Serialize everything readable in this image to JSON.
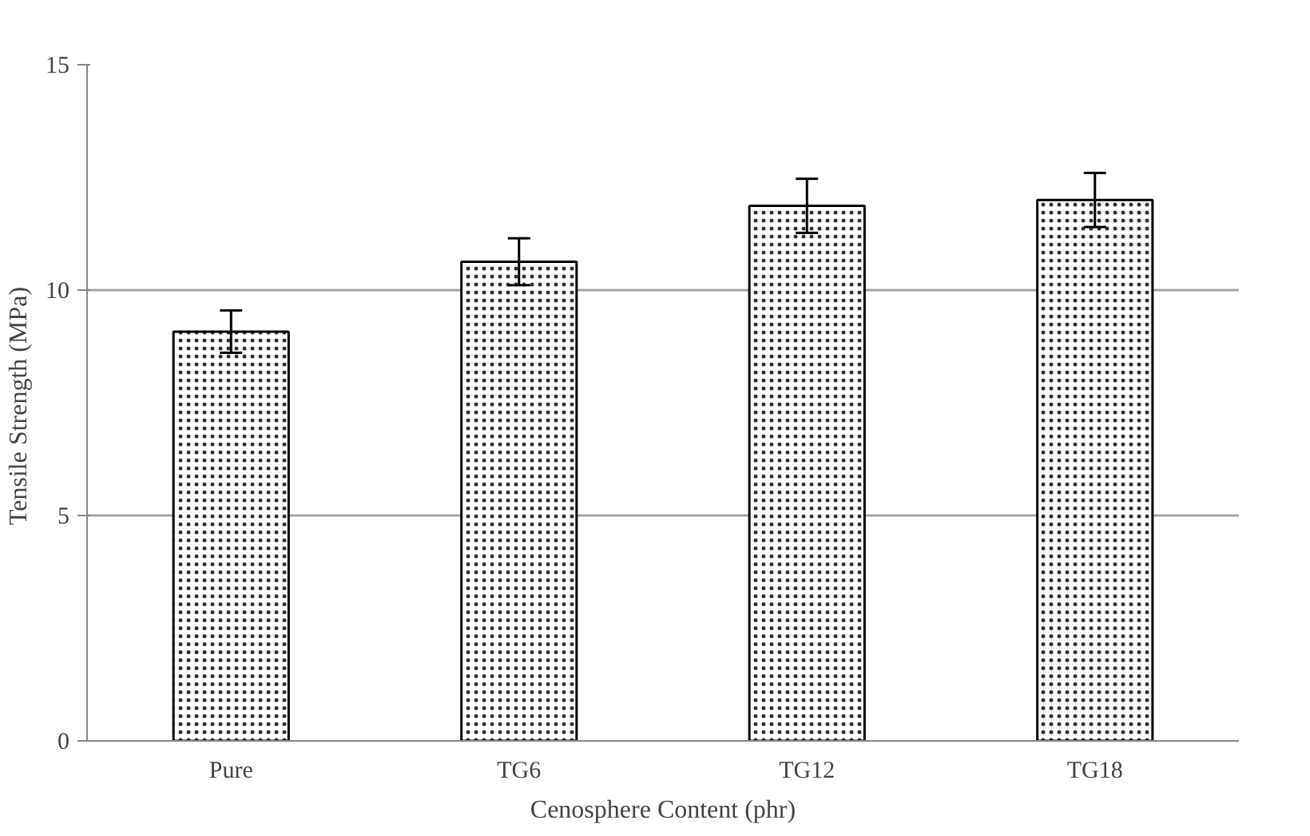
{
  "chart_data": {
    "type": "bar",
    "xlabel": "Cenosphere Content (phr)",
    "ylabel": "Tensile Strength  (MPa)",
    "categories": [
      "Pure",
      "TG6",
      "TG12",
      "TG18"
    ],
    "values": [
      9.08,
      10.63,
      11.87,
      12.0
    ],
    "errors": [
      0.47,
      0.52,
      0.6,
      0.6
    ],
    "color": "#ffffff",
    "ylim": [
      0,
      15
    ],
    "yticks": [
      0,
      5,
      10,
      15
    ],
    "grid": "y"
  }
}
